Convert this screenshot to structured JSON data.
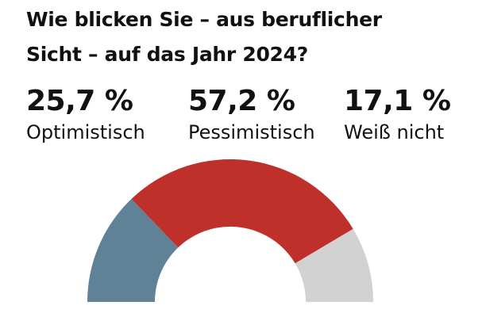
{
  "title_line1": "Wie blicken Sie – aus beruflicher",
  "title_line2": "Sicht – auf das Jahr 2024?",
  "chart_data": {
    "type": "pie",
    "style": "semicircle-donut",
    "categories": [
      "Optimistisch",
      "Pessimistisch",
      "Weiß nicht"
    ],
    "values": [
      25.7,
      57.2,
      17.1
    ],
    "value_labels": [
      "25,7 %",
      "57,2 %",
      "17,1 %"
    ],
    "colors": [
      "#5f8296",
      "#c0302b",
      "#d2d2d2"
    ],
    "unit": "%"
  }
}
